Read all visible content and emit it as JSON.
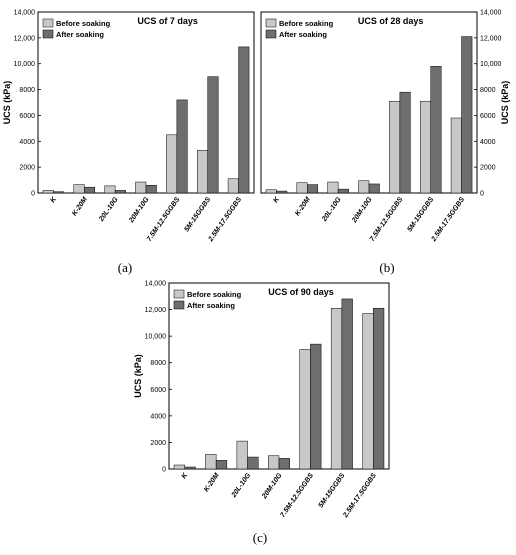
{
  "chart_data": [
    {
      "type": "bar",
      "title": "UCS of 7 days",
      "ylabel": "UCS (kPa)",
      "ylim": [
        0,
        14000
      ],
      "yticks": [
        "0",
        "2000",
        "4000",
        "6000",
        "8000",
        "10,000",
        "12,000",
        "14,000"
      ],
      "legend_position": "top-left",
      "panel_label": "(a)",
      "categories": [
        "K",
        "K-20M",
        "20L-10G",
        "20M-10G",
        "7.5M-12.5GGBS",
        "5M-15GGBS",
        "2.5M-17.5GGBS"
      ],
      "series": [
        {
          "name": "Before soaking",
          "color": "#c8c8c8",
          "values": [
            200,
            650,
            550,
            850,
            4500,
            3300,
            1100
          ]
        },
        {
          "name": "After soaking",
          "color": "#6e6e6e",
          "values": [
            100,
            450,
            200,
            600,
            7200,
            9000,
            11300
          ]
        }
      ]
    },
    {
      "type": "bar",
      "title": "UCS of 28 days",
      "ylabel": "UCS (kPa)",
      "ylim": [
        0,
        14000
      ],
      "yticks": [
        "0",
        "2000",
        "4000",
        "6000",
        "8000",
        "10,000",
        "12,000",
        "14,000"
      ],
      "legend_position": "top-left",
      "panel_label": "(b)",
      "categories": [
        "K",
        "K-20M",
        "20L-10G",
        "20M-10G",
        "7.5M-12.5GGBS",
        "5M-15GGBS",
        "2.5M-17.5GGBS"
      ],
      "series": [
        {
          "name": "Before soaking",
          "color": "#c8c8c8",
          "values": [
            250,
            800,
            850,
            950,
            7100,
            7100,
            5800
          ]
        },
        {
          "name": "After soaking",
          "color": "#6e6e6e",
          "values": [
            150,
            650,
            300,
            700,
            7800,
            9800,
            12100
          ]
        }
      ]
    },
    {
      "type": "bar",
      "title": "UCS of 90 days",
      "ylabel": "UCS (kPa)",
      "ylim": [
        0,
        14000
      ],
      "yticks": [
        "0",
        "2000",
        "4000",
        "6000",
        "8000",
        "10,000",
        "12,000",
        "14,000"
      ],
      "legend_position": "top-left",
      "panel_label": "(c)",
      "categories": [
        "K",
        "K-20M",
        "20L-10G",
        "20M-10G",
        "7.5M-12.5GGBS",
        "5M-15GGBS",
        "2.5M-17.5GGBS"
      ],
      "series": [
        {
          "name": "Before soaking",
          "color": "#c8c8c8",
          "values": [
            300,
            1100,
            2100,
            1000,
            9000,
            12100,
            11700
          ]
        },
        {
          "name": "After soaking",
          "color": "#6e6e6e",
          "values": [
            150,
            650,
            900,
            800,
            9400,
            12800,
            12100
          ]
        }
      ]
    }
  ]
}
